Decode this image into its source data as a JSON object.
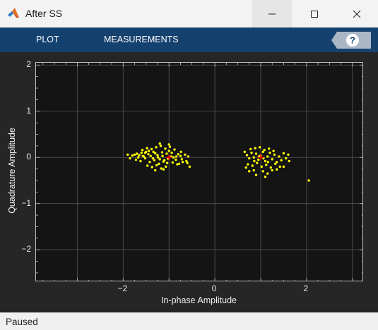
{
  "window": {
    "title": "After SS"
  },
  "toolstrip": {
    "tabs": [
      {
        "label": "PLOT"
      },
      {
        "label": "MEASUREMENTS"
      }
    ]
  },
  "status": {
    "text": "Paused"
  },
  "colors": {
    "background": "#141414",
    "points": "#ffff00",
    "reference": "#ff0000",
    "toolstrip": "#15416f",
    "grid": "#555555"
  },
  "chart_data": {
    "type": "scatter",
    "xlabel": "In-phase Amplitude",
    "ylabel": "Quadrature Amplitude",
    "xlim": [
      -3.9,
      3.25
    ],
    "ylim": [
      -2.7,
      2.05
    ],
    "xticks": [
      -2,
      0,
      2
    ],
    "yticks": [
      2,
      1,
      0,
      -1,
      -2
    ],
    "grid": true,
    "reference_points": [
      {
        "x": -1,
        "y": 0
      },
      {
        "x": 1,
        "y": 0
      }
    ],
    "series": [
      {
        "points": [
          [
            -1.8,
            0.04
          ],
          [
            -1.75,
            0.06
          ],
          [
            -1.7,
            0.08
          ],
          [
            -1.65,
            0.05
          ],
          [
            -1.6,
            0.1
          ],
          [
            -1.55,
            0.02
          ],
          [
            -1.5,
            0.12
          ],
          [
            -1.45,
            0.07
          ],
          [
            -1.4,
            0.03
          ],
          [
            -1.35,
            -0.02
          ],
          [
            -1.3,
            0.09
          ],
          [
            -1.25,
            0.05
          ],
          [
            -1.2,
            -0.04
          ],
          [
            -1.15,
            0.11
          ],
          [
            -1.1,
            -0.06
          ],
          [
            -1.05,
            0.08
          ],
          [
            -1.0,
            0.14
          ],
          [
            -0.95,
            0.02
          ],
          [
            -0.9,
            0.0
          ],
          [
            -0.85,
            -0.05
          ],
          [
            -0.8,
            0.07
          ],
          [
            -0.75,
            0.03
          ],
          [
            -0.7,
            -0.1
          ],
          [
            -0.65,
            0.06
          ],
          [
            -0.6,
            -0.12
          ],
          [
            -1.72,
            -0.05
          ],
          [
            -1.62,
            -0.08
          ],
          [
            -1.52,
            -0.02
          ],
          [
            -1.42,
            -0.1
          ],
          [
            -1.32,
            -0.06
          ],
          [
            -1.22,
            -0.14
          ],
          [
            -1.12,
            -0.09
          ],
          [
            -1.02,
            -0.03
          ],
          [
            -0.92,
            -0.11
          ],
          [
            -0.82,
            -0.15
          ],
          [
            -0.72,
            -0.04
          ],
          [
            -0.62,
            -0.08
          ],
          [
            -1.58,
            0.16
          ],
          [
            -1.48,
            0.2
          ],
          [
            -1.38,
            0.18
          ],
          [
            -1.28,
            0.22
          ],
          [
            -1.18,
            0.25
          ],
          [
            -1.08,
            0.19
          ],
          [
            -0.98,
            0.23
          ],
          [
            -0.88,
            0.17
          ],
          [
            -1.47,
            -0.18
          ],
          [
            -1.37,
            -0.21
          ],
          [
            -1.27,
            -0.17
          ],
          [
            -1.17,
            -0.24
          ],
          [
            -1.07,
            -0.2
          ],
          [
            -1.67,
            0.0
          ],
          [
            -1.57,
            0.03
          ],
          [
            -1.44,
            0.14
          ],
          [
            -1.34,
            0.12
          ],
          [
            -1.24,
            0.0
          ],
          [
            -1.14,
            0.03
          ],
          [
            -1.04,
            -0.12
          ],
          [
            -0.94,
            0.1
          ],
          [
            -0.84,
            0.02
          ],
          [
            -0.74,
            0.12
          ],
          [
            -1.9,
            0.06
          ],
          [
            -1.85,
            -0.02
          ],
          [
            -0.55,
            -0.2
          ],
          [
            -0.58,
            0.02
          ],
          [
            -1.2,
            0.3
          ],
          [
            -1.0,
            0.28
          ],
          [
            -1.3,
            -0.28
          ],
          [
            -1.12,
            -0.26
          ],
          [
            -0.78,
            -0.14
          ],
          [
            -1.52,
            0.1
          ],
          [
            0.65,
            0.12
          ],
          [
            0.7,
            0.05
          ],
          [
            0.75,
            -0.02
          ],
          [
            0.8,
            0.1
          ],
          [
            0.85,
            0.0
          ],
          [
            0.9,
            0.08
          ],
          [
            0.95,
            -0.05
          ],
          [
            1.0,
            0.04
          ],
          [
            1.05,
            0.12
          ],
          [
            1.1,
            -0.08
          ],
          [
            1.15,
            0.02
          ],
          [
            1.2,
            0.1
          ],
          [
            1.25,
            -0.04
          ],
          [
            1.3,
            0.06
          ],
          [
            1.35,
            -0.1
          ],
          [
            1.4,
            0.02
          ],
          [
            1.45,
            -0.06
          ],
          [
            1.5,
            0.09
          ],
          [
            1.55,
            -0.02
          ],
          [
            1.6,
            0.06
          ],
          [
            0.72,
            -0.15
          ],
          [
            0.82,
            -0.18
          ],
          [
            0.92,
            -0.12
          ],
          [
            1.02,
            -0.2
          ],
          [
            1.12,
            -0.16
          ],
          [
            1.22,
            -0.22
          ],
          [
            1.32,
            -0.14
          ],
          [
            1.42,
            -0.2
          ],
          [
            0.78,
            0.18
          ],
          [
            0.88,
            0.2
          ],
          [
            0.98,
            0.22
          ],
          [
            1.08,
            0.16
          ],
          [
            1.18,
            0.19
          ],
          [
            1.28,
            0.14
          ],
          [
            0.75,
            -0.3
          ],
          [
            0.85,
            -0.28
          ],
          [
            1.05,
            -0.3
          ],
          [
            1.15,
            -0.35
          ],
          [
            1.25,
            -0.28
          ],
          [
            0.68,
            -0.22
          ],
          [
            0.9,
            -0.38
          ],
          [
            1.1,
            -0.42
          ],
          [
            1.35,
            -0.26
          ],
          [
            1.5,
            -0.2
          ],
          [
            1.62,
            -0.08
          ],
          [
            0.96,
            0.02
          ],
          [
            1.06,
            -0.02
          ],
          [
            0.86,
            -0.08
          ],
          [
            1.16,
            -0.1
          ],
          [
            2.05,
            -0.5
          ]
        ]
      }
    ]
  }
}
